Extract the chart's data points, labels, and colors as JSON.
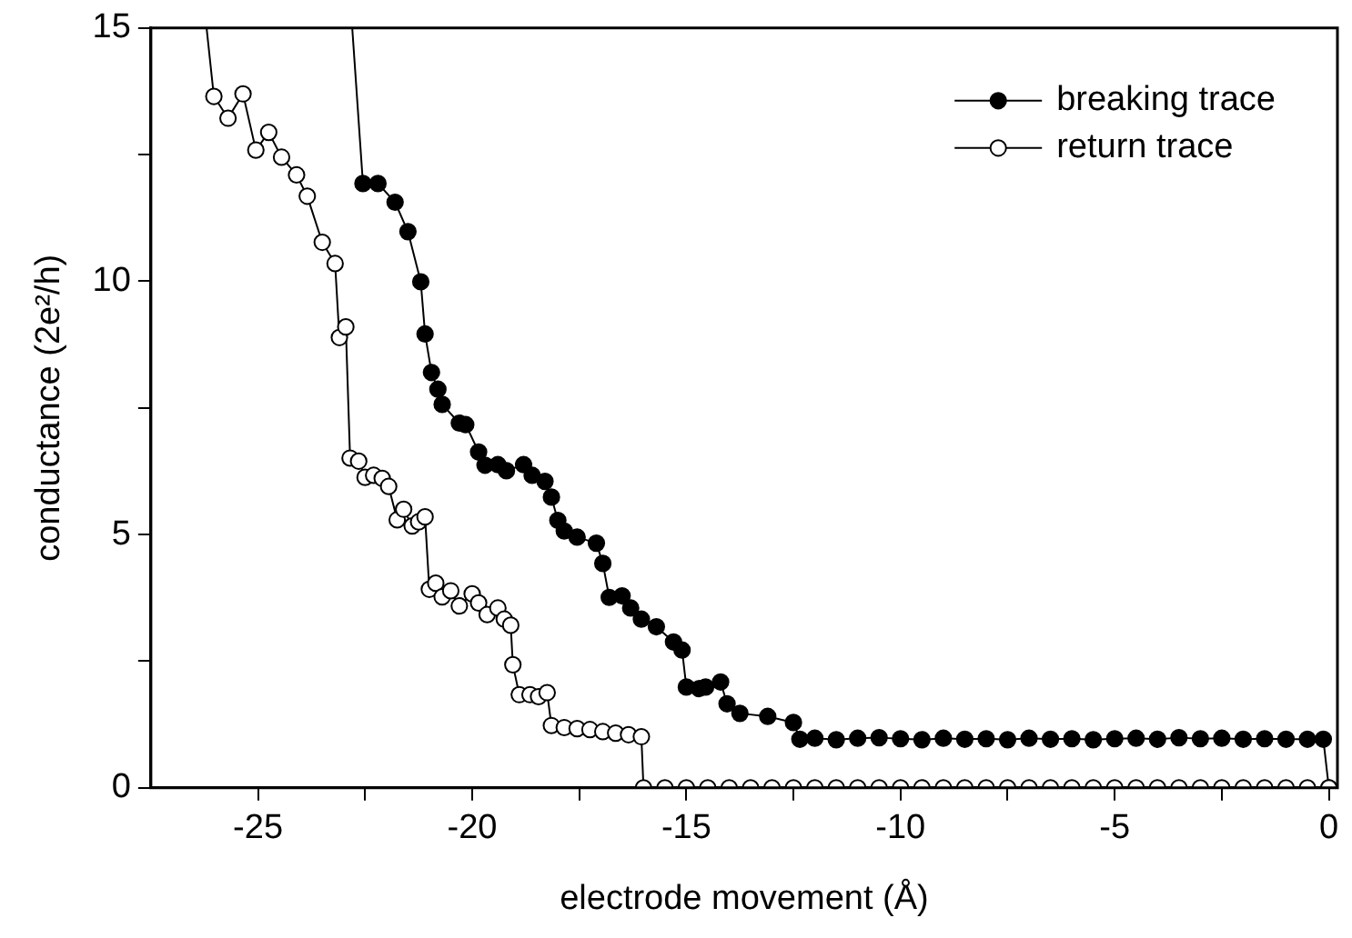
{
  "chart_data": {
    "type": "line",
    "xlabel": "electrode movement (Å)",
    "ylabel": "conductance (2e²/h)",
    "xlim": [
      -27.5,
      0.2
    ],
    "ylim": [
      0,
      15
    ],
    "xticks": [
      -25,
      {
        "value": -22.5,
        "label": null
      },
      -20,
      {
        "value": -17.5,
        "label": null
      },
      -15,
      {
        "value": -12.5,
        "label": null
      },
      -10,
      {
        "value": -7.5,
        "label": null
      },
      -5,
      {
        "value": -2.5,
        "label": null
      },
      0
    ],
    "yticks": [
      0,
      {
        "value": 2.5,
        "label": null
      },
      5,
      {
        "value": 7.5,
        "label": null
      },
      10,
      {
        "value": 12.5,
        "label": null
      },
      15
    ],
    "grid": false,
    "legend": "top right",
    "marker": "circle",
    "line_style": "solid",
    "series": [
      {
        "name": "breaking trace",
        "color": "#000000",
        "x": [
          -22.8,
          -22.55,
          -22.2,
          -21.8,
          -21.5,
          -21.2,
          -21.1,
          -20.95,
          -20.8,
          -20.7,
          -20.3,
          -20.15,
          -19.85,
          -19.7,
          -19.4,
          -19.2,
          -18.8,
          -18.6,
          -18.3,
          -18.15,
          -18.0,
          -17.85,
          -17.55,
          -17.1,
          -16.95,
          -16.8,
          -16.5,
          -16.3,
          -16.05,
          -15.7,
          -15.3,
          -15.1,
          -15.0,
          -14.7,
          -14.55,
          -14.2,
          -14.05,
          -13.75,
          -13.1,
          -12.5,
          -12.35,
          -12.0,
          -11.5,
          -11.0,
          -10.5,
          -10.0,
          -9.5,
          -9.0,
          -8.5,
          -8.0,
          -7.5,
          -7.0,
          -6.5,
          -6.0,
          -5.5,
          -5.0,
          -4.5,
          -4.0,
          -3.5,
          -3.0,
          -2.5,
          -2.0,
          -1.5,
          -1.0,
          -0.5,
          -0.13,
          0
        ],
        "values": [
          15,
          11.93,
          11.93,
          11.56,
          10.98,
          9.99,
          8.96,
          8.2,
          7.87,
          7.57,
          7.2,
          7.17,
          6.63,
          6.37,
          6.38,
          6.26,
          6.38,
          6.17,
          6.05,
          5.74,
          5.28,
          5.07,
          4.95,
          4.83,
          4.43,
          3.76,
          3.79,
          3.55,
          3.33,
          3.18,
          2.88,
          2.72,
          1.99,
          1.96,
          1.99,
          2.09,
          1.66,
          1.47,
          1.41,
          1.29,
          0.96,
          0.98,
          0.95,
          0.98,
          0.99,
          0.97,
          0.95,
          0.98,
          0.96,
          0.97,
          0.95,
          0.98,
          0.96,
          0.97,
          0.95,
          0.97,
          0.98,
          0.96,
          0.99,
          0.97,
          0.98,
          0.96,
          0.97,
          0.96,
          0.96,
          0.96,
          0
        ]
      },
      {
        "name": "return trace",
        "color": "#000000",
        "x": [
          -26.2,
          -26.03,
          -25.7,
          -25.35,
          -25.05,
          -24.75,
          -24.45,
          -24.1,
          -23.85,
          -23.5,
          -23.2,
          -23.1,
          -22.95,
          -22.85,
          -22.65,
          -22.5,
          -22.3,
          -22.1,
          -21.95,
          -21.75,
          -21.6,
          -21.4,
          -21.25,
          -21.1,
          -21.0,
          -20.85,
          -20.7,
          -20.5,
          -20.3,
          -20.0,
          -19.85,
          -19.65,
          -19.4,
          -19.25,
          -19.1,
          -19.05,
          -18.9,
          -18.65,
          -18.45,
          -18.25,
          -18.15,
          -17.85,
          -17.55,
          -17.25,
          -16.95,
          -16.65,
          -16.35,
          -16.05,
          -16.0,
          -15.5,
          -15.0,
          -14.5,
          -14.0,
          -13.5,
          -13.0,
          -12.5,
          -12.0,
          -11.5,
          -11.0,
          -10.5,
          -10.0,
          -9.5,
          -9.0,
          -8.5,
          -8.0,
          -7.5,
          -7.0,
          -6.5,
          -6.0,
          -5.5,
          -5.0,
          -4.5,
          -4.0,
          -3.5,
          -3.0,
          -2.5,
          -2.0,
          -1.5,
          -1.0,
          -0.5,
          0
        ],
        "values": [
          15,
          13.65,
          13.22,
          13.7,
          12.59,
          12.94,
          12.45,
          12.1,
          11.68,
          10.77,
          10.35,
          8.89,
          9.1,
          6.51,
          6.45,
          6.13,
          6.17,
          6.11,
          5.95,
          5.29,
          5.5,
          5.17,
          5.25,
          5.35,
          3.92,
          4.04,
          3.77,
          3.89,
          3.59,
          3.83,
          3.65,
          3.42,
          3.55,
          3.33,
          3.21,
          2.43,
          1.84,
          1.84,
          1.8,
          1.88,
          1.23,
          1.19,
          1.17,
          1.15,
          1.11,
          1.08,
          1.05,
          1.01,
          0,
          0,
          0,
          0,
          0,
          0,
          0,
          0,
          0,
          0,
          0,
          0,
          0,
          0,
          0,
          0,
          0,
          0,
          0,
          0,
          0,
          0,
          0,
          0,
          0,
          0,
          0,
          0,
          0,
          0,
          0,
          0,
          0
        ]
      }
    ]
  }
}
